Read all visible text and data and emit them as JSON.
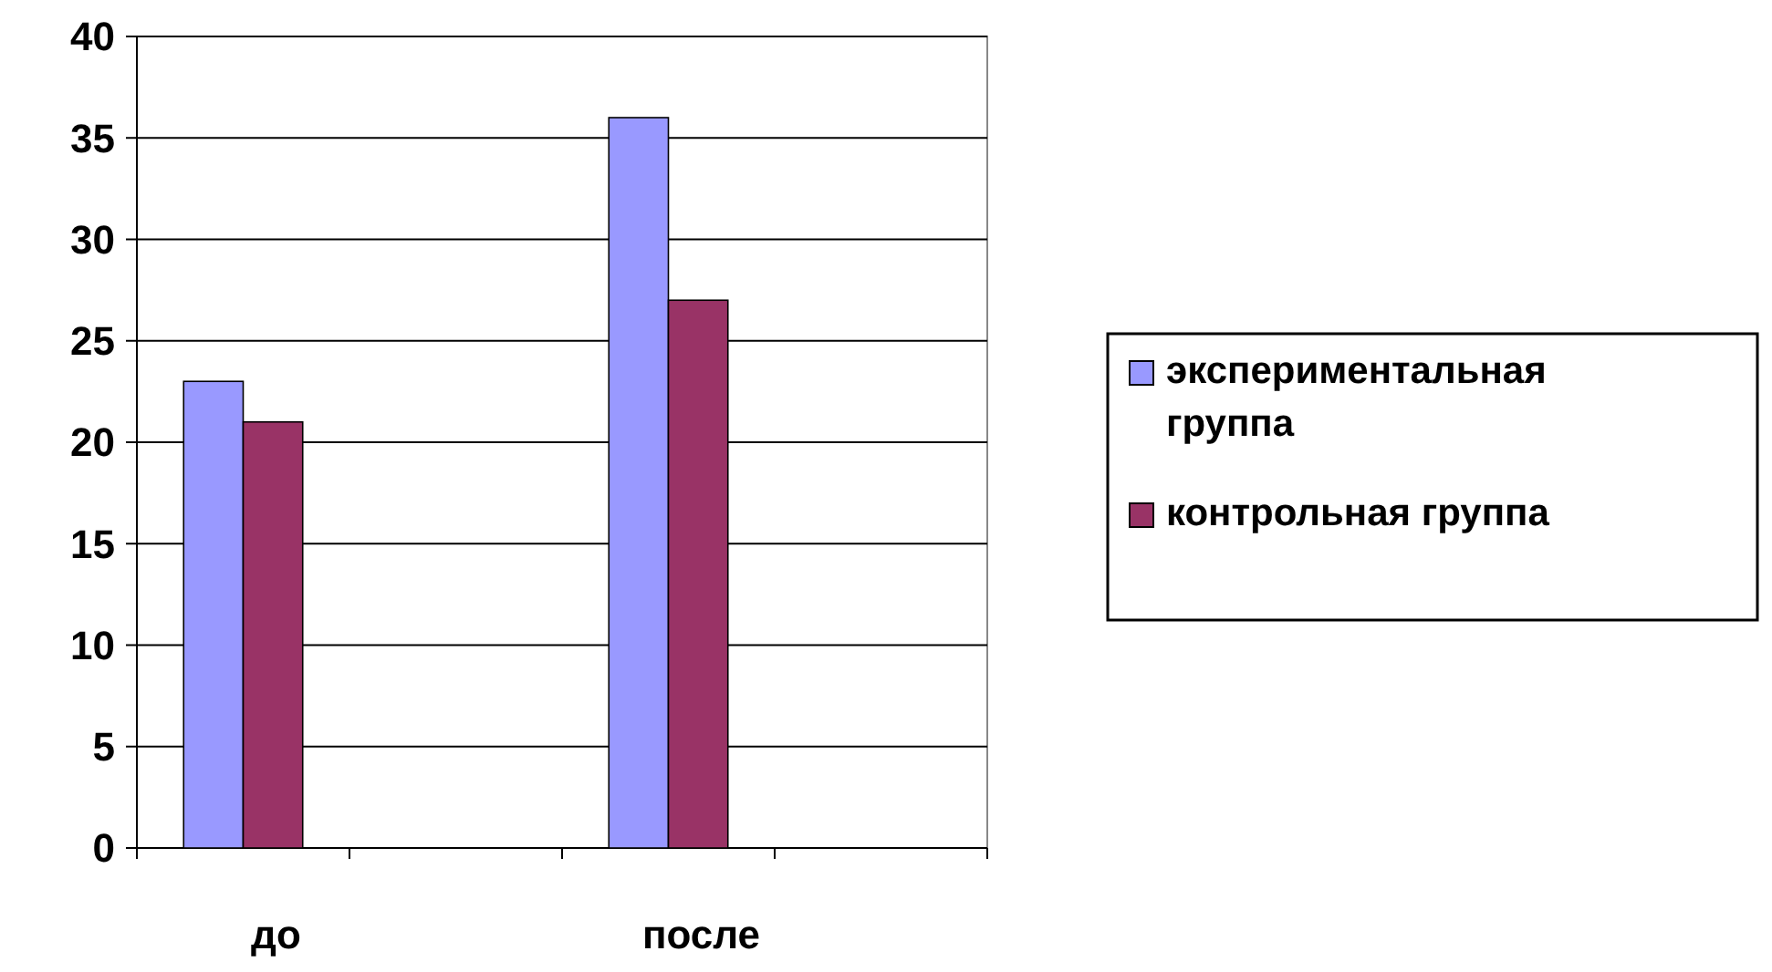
{
  "chart_data": {
    "type": "bar",
    "categories": [
      "до",
      null,
      "после",
      null
    ],
    "series": [
      {
        "name": "экспериментальная группа",
        "color": "#9999ff",
        "values": [
          23,
          null,
          36,
          null
        ]
      },
      {
        "name": "контрольная группа",
        "color": "#993366",
        "values": [
          21,
          null,
          27,
          null
        ]
      }
    ],
    "ylim": [
      0,
      40
    ],
    "yticks": [
      0,
      5,
      10,
      15,
      20,
      25,
      30,
      35,
      40
    ],
    "grid": "y",
    "legend": "right"
  }
}
